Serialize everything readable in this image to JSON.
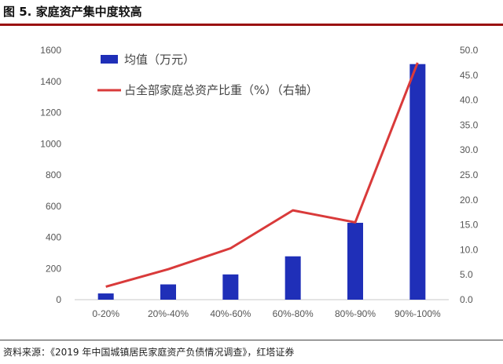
{
  "header": {
    "title": "图 5. 家庭资产集中度较高"
  },
  "footer": {
    "source": "资料来源：《2019 年中国城镇居民家庭资产负债情况调查》，红塔证券"
  },
  "colors": {
    "bar": "#1f2fb8",
    "line": "#d93a3a",
    "title_rule": "#9a1010"
  },
  "chart_data": {
    "type": "bar+line",
    "title": "家庭资产集中度较高",
    "categories": [
      "0-20%",
      "20%-40%",
      "40%-60%",
      "60%-80%",
      "80%-90%",
      "90%-100%"
    ],
    "series": [
      {
        "name": "均值（万元）",
        "type": "bar",
        "axis": "left",
        "values": [
          40,
          98,
          162,
          278,
          493,
          1511
        ]
      },
      {
        "name": "占全部家庭总资产比重（%）（右轴）",
        "type": "line",
        "axis": "right",
        "values": [
          2.6,
          6.1,
          10.3,
          17.9,
          15.5,
          47.5
        ]
      }
    ],
    "y_left": {
      "min": 0,
      "max": 1600,
      "ticks": [
        "0",
        "200",
        "400",
        "600",
        "800",
        "1000",
        "1200",
        "1400",
        "1600"
      ]
    },
    "y_right": {
      "min": 0,
      "max": 50,
      "ticks": [
        "0.0",
        "5.0",
        "10.0",
        "15.0",
        "20.0",
        "25.0",
        "30.0",
        "35.0",
        "40.0",
        "45.0",
        "50.0"
      ]
    },
    "legend": "top-left inside plot",
    "grid": false
  }
}
